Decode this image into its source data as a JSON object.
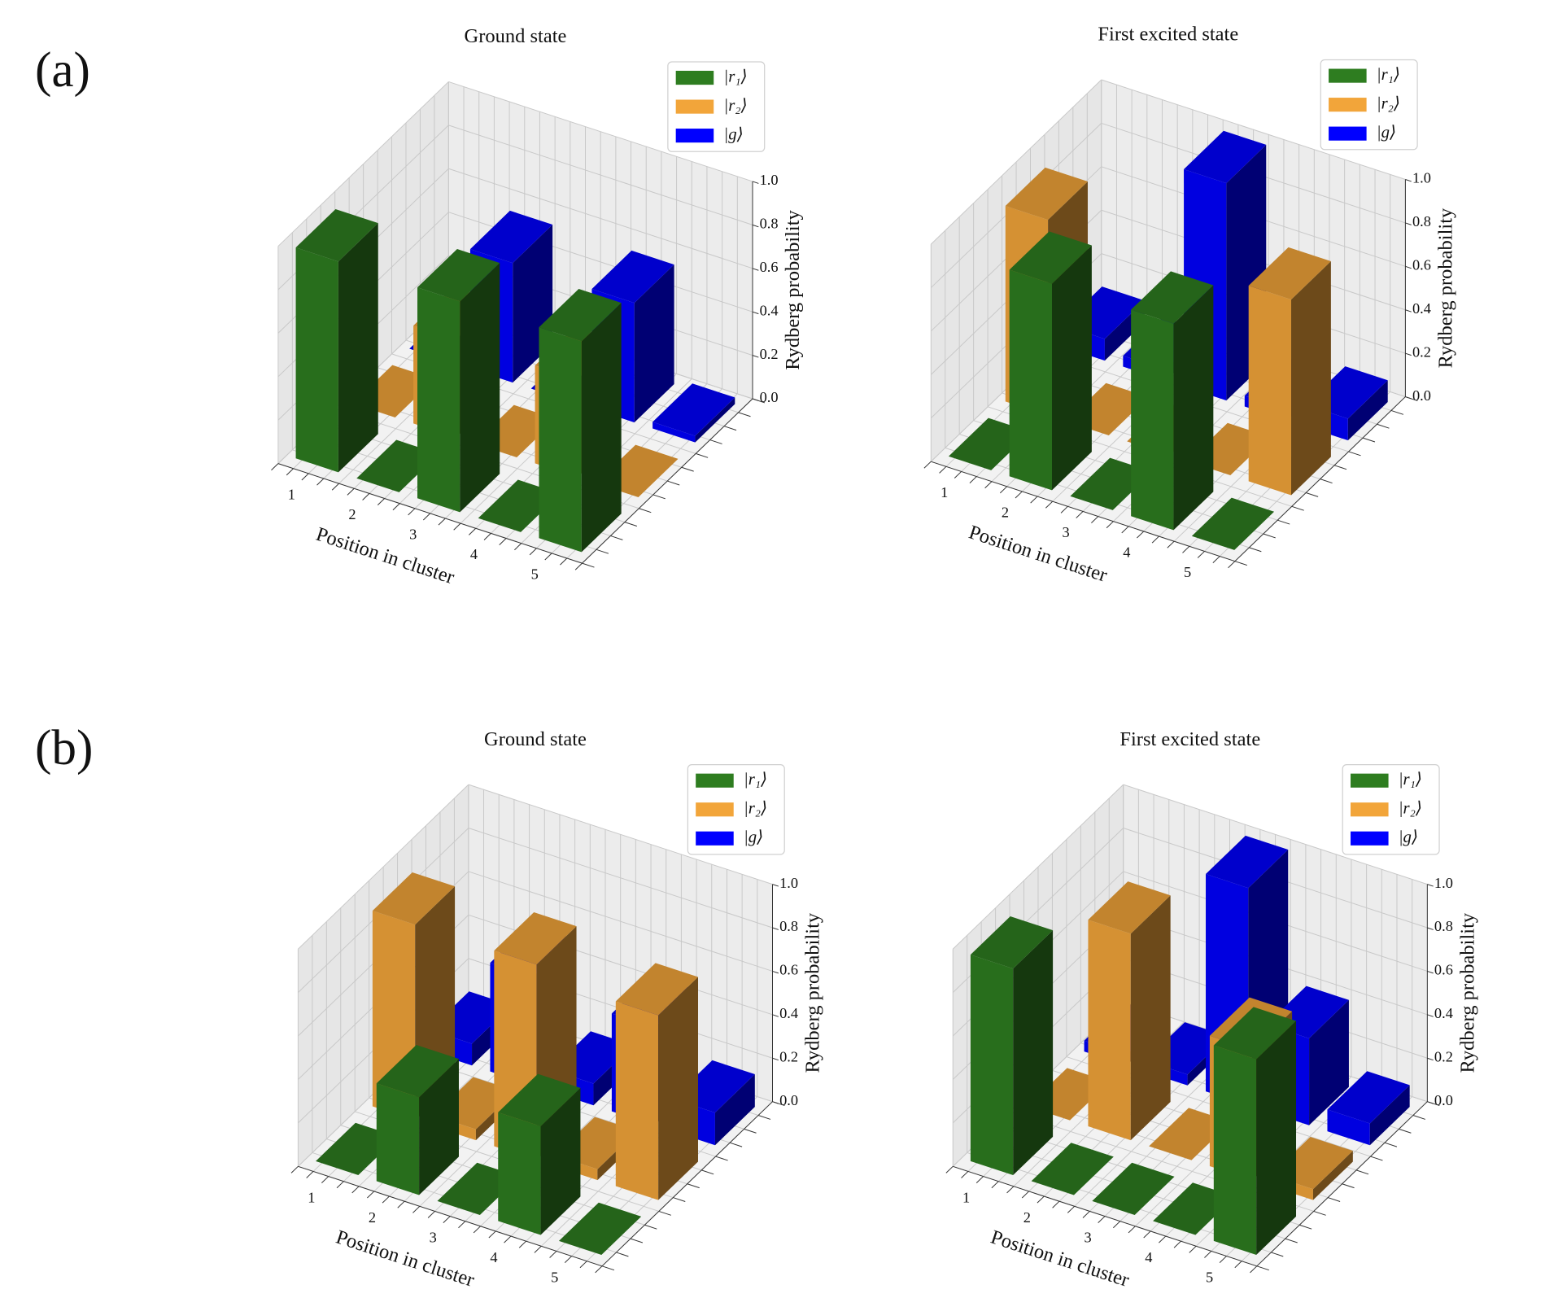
{
  "panel_labels": [
    "(a)",
    "(b)"
  ],
  "chart_data": [
    {
      "type": "bar3d",
      "title": "Ground state",
      "xlabel": "Position in cluster",
      "zlabel": "Rydberg probability",
      "categories": [
        "1",
        "2",
        "3",
        "4",
        "5"
      ],
      "series": [
        {
          "name": "|r₁⟩",
          "color": "#2e7d20",
          "values": [
            0.97,
            0,
            0.97,
            0,
            0.97
          ]
        },
        {
          "name": "|r₂⟩",
          "color": "#f2a53a",
          "values": [
            0,
            0.45,
            0,
            0.45,
            0
          ]
        },
        {
          "name": "|g⟩",
          "color": "#0000ff",
          "values": [
            0,
            0.55,
            0,
            0.55,
            0.03
          ]
        }
      ],
      "zlim": [
        0,
        1
      ],
      "zticks": [
        {
          "value": 0,
          "label": "0.0"
        },
        {
          "value": 0.2,
          "label": "0.2"
        },
        {
          "value": 0.4,
          "label": "0.4"
        },
        {
          "value": 0.6,
          "label": "0.6"
        },
        {
          "value": 0.8,
          "label": "0.8"
        },
        {
          "value": 1,
          "label": "1.0"
        }
      ],
      "grid": true,
      "legend": "upper right"
    },
    {
      "type": "bar3d",
      "title": "First excited state",
      "xlabel": "Position in cluster",
      "zlabel": "Rydberg probability",
      "categories": [
        "1",
        "2",
        "3",
        "4",
        "5"
      ],
      "series": [
        {
          "name": "|r₁⟩",
          "color": "#2e7d20",
          "values": [
            0,
            0.95,
            0,
            0.95,
            0
          ]
        },
        {
          "name": "|r₂⟩",
          "color": "#f2a53a",
          "values": [
            0.9,
            0,
            0,
            0,
            0.9
          ]
        },
        {
          "name": "|g⟩",
          "color": "#0000ff",
          "values": [
            0.1,
            0.05,
            1.0,
            0.05,
            0.1
          ]
        }
      ],
      "zlim": [
        0,
        1
      ],
      "zticks": [
        {
          "value": 0,
          "label": "0.0"
        },
        {
          "value": 0.2,
          "label": "0.2"
        },
        {
          "value": 0.4,
          "label": "0.4"
        },
        {
          "value": 0.6,
          "label": "0.6"
        },
        {
          "value": 0.8,
          "label": "0.8"
        },
        {
          "value": 1,
          "label": "1.0"
        }
      ],
      "grid": true,
      "legend": "upper right"
    },
    {
      "type": "bar3d",
      "title": "Ground state",
      "xlabel": "Position in cluster",
      "zlabel": "Rydberg probability",
      "categories": [
        "1",
        "2",
        "3",
        "4",
        "5"
      ],
      "series": [
        {
          "name": "|r₁⟩",
          "color": "#2e7d20",
          "values": [
            0,
            0.45,
            0,
            0.5,
            0
          ]
        },
        {
          "name": "|r₂⟩",
          "color": "#f2a53a",
          "values": [
            0.9,
            0.05,
            0.9,
            0.05,
            0.85
          ]
        },
        {
          "name": "|g⟩",
          "color": "#0000ff",
          "values": [
            0.1,
            0.5,
            0.1,
            0.45,
            0.15
          ]
        }
      ],
      "zlim": [
        0,
        1
      ],
      "zticks": [
        {
          "value": 0,
          "label": "0.0"
        },
        {
          "value": 0.2,
          "label": "0.2"
        },
        {
          "value": 0.4,
          "label": "0.4"
        },
        {
          "value": 0.6,
          "label": "0.6"
        },
        {
          "value": 0.8,
          "label": "0.8"
        },
        {
          "value": 1,
          "label": "1.0"
        }
      ],
      "grid": true,
      "legend": "upper right"
    },
    {
      "type": "bar3d",
      "title": "First excited state",
      "xlabel": "Position in cluster",
      "zlabel": "Rydberg probability",
      "categories": [
        "1",
        "2",
        "3",
        "4",
        "5"
      ],
      "series": [
        {
          "name": "|r₁⟩",
          "color": "#2e7d20",
          "values": [
            0.95,
            0,
            0,
            0,
            0.9
          ]
        },
        {
          "name": "|r₂⟩",
          "color": "#f2a53a",
          "values": [
            0,
            0.95,
            0,
            0.6,
            0.05
          ]
        },
        {
          "name": "|g⟩",
          "color": "#0000ff",
          "values": [
            0.05,
            0.05,
            1.0,
            0.4,
            0.1
          ]
        }
      ],
      "zlim": [
        0,
        1
      ],
      "zticks": [
        {
          "value": 0,
          "label": "0.0"
        },
        {
          "value": 0.2,
          "label": "0.2"
        },
        {
          "value": 0.4,
          "label": "0.4"
        },
        {
          "value": 0.6,
          "label": "0.6"
        },
        {
          "value": 0.8,
          "label": "0.8"
        },
        {
          "value": 1,
          "label": "1.0"
        }
      ],
      "grid": true,
      "legend": "upper right"
    }
  ]
}
